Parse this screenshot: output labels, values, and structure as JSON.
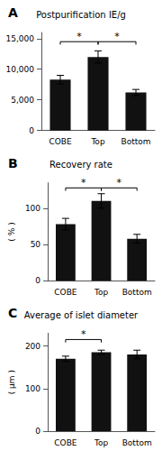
{
  "chart_data": [
    {
      "type": "bar",
      "panel_label": "A",
      "title": "Postpurification IE/g",
      "categories": [
        "COBE",
        "Top",
        "Bottom"
      ],
      "values": [
        8300,
        12000,
        6200
      ],
      "errors": [
        700,
        1000,
        500
      ],
      "color": "#111111",
      "grid": false,
      "ylim": [
        0,
        16000
      ],
      "yticks": [
        0,
        {
          "value": 5000,
          "label": "5,000"
        },
        {
          "value": 10000,
          "label": "10,000"
        },
        {
          "value": 15000,
          "label": "15,000"
        }
      ],
      "annotations": [
        {
          "text": "*",
          "from": "COBE",
          "to": "Top",
          "y": 14500
        },
        {
          "text": "*",
          "from": "Top",
          "to": "Bottom",
          "y": 14500
        }
      ]
    },
    {
      "type": "bar",
      "panel_label": "B",
      "title": "Recovery rate",
      "ylabel": "( % )",
      "categories": [
        "COBE",
        "Top",
        "Bottom"
      ],
      "values": [
        78,
        110,
        58
      ],
      "errors": [
        8,
        10,
        6
      ],
      "color": "#111111",
      "grid": false,
      "ylim": [
        0,
        135
      ],
      "yticks": [
        0,
        50,
        100
      ],
      "annotations": [
        {
          "text": "*",
          "from": "COBE",
          "to": "Top",
          "y": 128
        },
        {
          "text": "*",
          "from": "Top",
          "to": "Bottom",
          "y": 128
        }
      ]
    },
    {
      "type": "bar",
      "panel_label": "C",
      "title": "Average of islet diameter",
      "ylabel": "( μm )",
      "categories": [
        "COBE",
        "Top",
        "Bottom"
      ],
      "values": [
        170,
        185,
        180
      ],
      "errors": [
        6,
        5,
        10
      ],
      "color": "#111111",
      "grid": false,
      "ylim": [
        0,
        230
      ],
      "yticks": [
        0,
        100,
        200
      ],
      "annotations": [
        {
          "text": "*",
          "from": "COBE",
          "to": "Top",
          "y": 215
        }
      ]
    }
  ]
}
